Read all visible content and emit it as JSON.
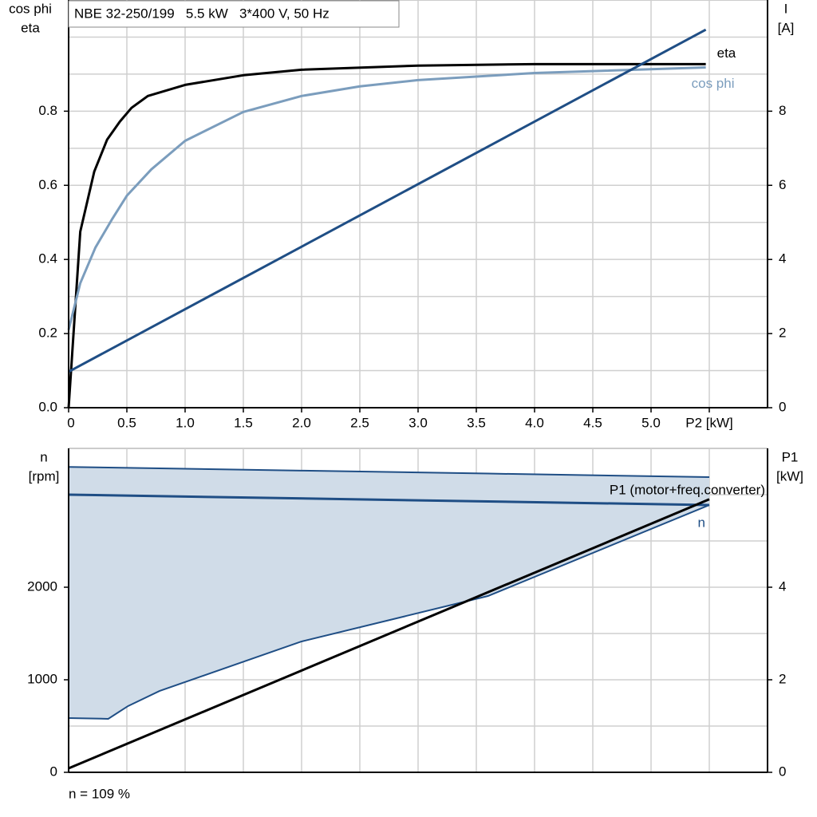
{
  "chart_data": [
    {
      "type": "line",
      "title": "NBE 32-250/199   5.5 kW   3*400 V, 50 Hz",
      "ylabel": [
        "cos phi",
        "eta"
      ],
      "y2label": [
        "I",
        "[A]"
      ],
      "xlim": [
        0,
        6
      ],
      "xticks": [
        0,
        0.5,
        {
          "value": 1,
          "label": "1.0"
        },
        1.5,
        {
          "value": 2,
          "label": "2.0"
        },
        2.5,
        {
          "value": 3,
          "label": "3.0"
        },
        3.5,
        {
          "value": 4,
          "label": "4.0"
        },
        4.5,
        {
          "value": 5,
          "label": "5.0"
        },
        {
          "value": 5.5,
          "label": "P2 [kW]"
        }
      ],
      "ylim": [
        0,
        1.1
      ],
      "yticks": [
        {
          "value": 0,
          "label": "0.0"
        },
        0.2,
        0.4,
        0.6,
        0.8
      ],
      "minor_yticks": [
        0.1,
        0.3,
        0.5,
        0.7,
        0.9,
        1.0
      ],
      "y2lim": [
        0,
        11
      ],
      "y2ticks": [
        0,
        2,
        4,
        6,
        8
      ],
      "grid": true,
      "series": [
        {
          "name": "eta",
          "color": "#000000",
          "x": [
            0,
            0.1,
            0.22,
            0.33,
            0.44,
            0.54,
            0.68,
            1.0,
            1.5,
            2.0,
            3.0,
            4.0,
            5.47
          ],
          "values": [
            0,
            0.475,
            0.637,
            0.723,
            0.772,
            0.809,
            0.841,
            0.871,
            0.897,
            0.912,
            0.923,
            0.927,
            0.927
          ]
        },
        {
          "name": "cos phi",
          "color": "#7b9dbd",
          "x": [
            0,
            0.1,
            0.23,
            0.37,
            0.5,
            0.71,
            1.0,
            1.5,
            2.0,
            2.5,
            3.0,
            4.0,
            5.47
          ],
          "values": [
            0.21,
            0.336,
            0.432,
            0.507,
            0.572,
            0.643,
            0.72,
            0.798,
            0.841,
            0.867,
            0.884,
            0.903,
            0.918
          ]
        },
        {
          "color": "#1f4e85",
          "axis": "y2",
          "x": [
            0,
            5.47
          ],
          "values": [
            0.97,
            10.2
          ]
        }
      ]
    },
    {
      "type": "line",
      "ylabel": [
        "n",
        "[rpm]"
      ],
      "y2label": [
        "P1",
        "[kW]"
      ],
      "xlim": [
        0,
        6
      ],
      "xgrid": [
        0.5,
        1,
        1.5,
        2,
        2.5,
        3,
        3.5,
        4,
        4.5,
        5,
        5.5
      ],
      "ylim": [
        0,
        3500
      ],
      "yticks": [
        0,
        1000,
        2000
      ],
      "minor_yticks": [
        500,
        1500,
        2500,
        3000
      ],
      "y2lim": [
        0,
        7
      ],
      "y2ticks": [
        0,
        2,
        4
      ],
      "grid": true,
      "band": {
        "color": "#d0dce8",
        "edge": "#1f4e85",
        "x": [
          0,
          0.34,
          0.51,
          0.78,
          2.0,
          3.6,
          5.5
        ],
        "high": [
          3300,
          3293,
          3290,
          3284,
          3260,
          3228,
          3190
        ],
        "low": [
          586,
          578,
          716,
          879,
          1414,
          1905,
          2888
        ]
      },
      "series": [
        {
          "name": "n",
          "color": "#1f4e85",
          "x": [
            0,
            5.5
          ],
          "values": [
            3000,
            2888
          ]
        },
        {
          "name": "P1 (motor+freq.converter)",
          "color": "#000000",
          "axis": "y2",
          "x": [
            0,
            5.5
          ],
          "values": [
            0.086,
            5.9
          ]
        }
      ],
      "note": "n = 109 %"
    }
  ]
}
